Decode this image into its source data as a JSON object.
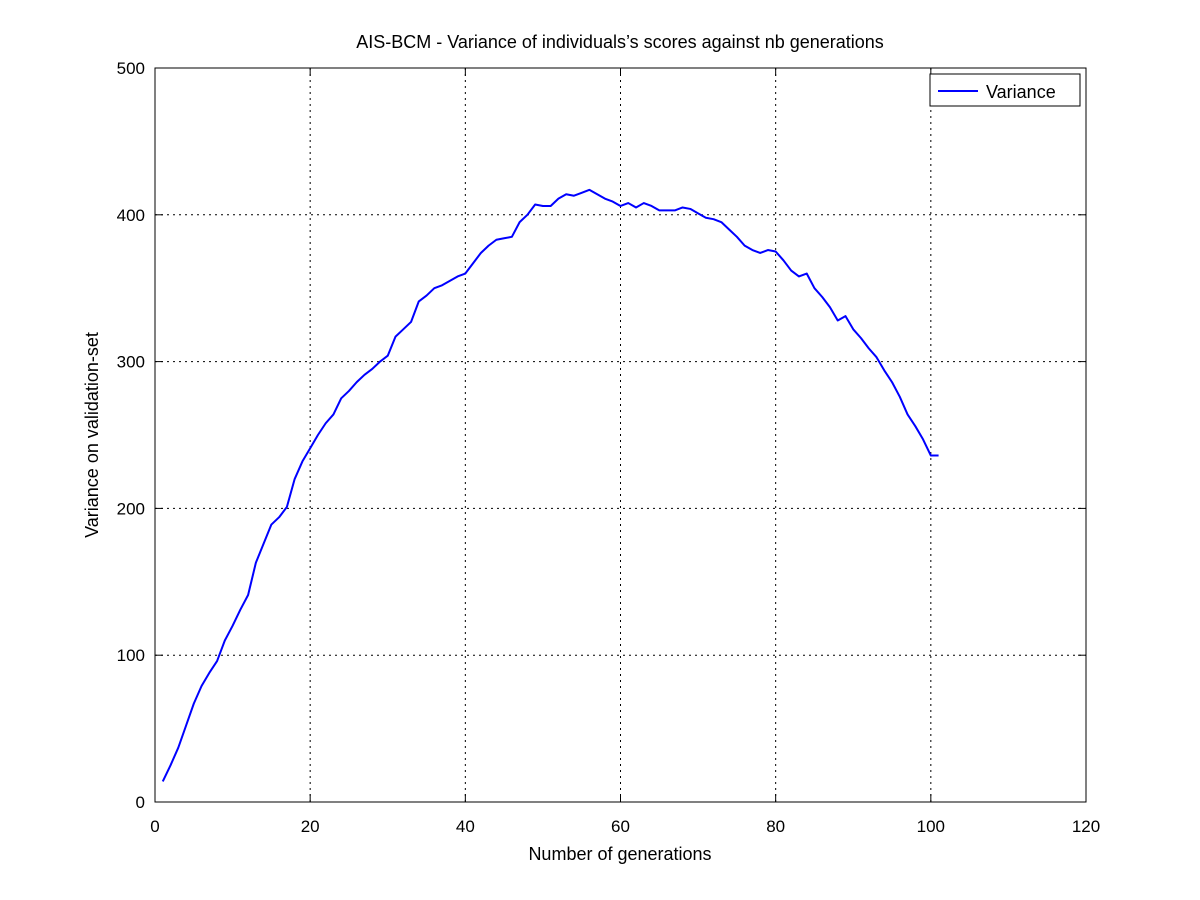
{
  "chart_data": {
    "type": "line",
    "title": "AIS-BCM - Variance of individuals’s scores against nb generations",
    "xlabel": "Number of generations",
    "ylabel": "Variance on validation-set",
    "xlim": [
      0,
      120
    ],
    "ylim": [
      0,
      500
    ],
    "xticks": [
      "0",
      "20",
      "40",
      "60",
      "80",
      "100",
      "120"
    ],
    "yticks": [
      "0",
      "100",
      "200",
      "300",
      "400",
      "500"
    ],
    "grid": true,
    "legend_position": "top-right",
    "colors": {
      "series": "#0000ff",
      "axes": "#000000",
      "grid": "#000000"
    },
    "series": [
      {
        "name": "Variance",
        "x": [
          1,
          2,
          3,
          4,
          5,
          6,
          7,
          8,
          9,
          10,
          11,
          12,
          13,
          14,
          15,
          16,
          17,
          18,
          19,
          20,
          21,
          22,
          23,
          24,
          25,
          26,
          27,
          28,
          29,
          30,
          31,
          32,
          33,
          34,
          35,
          36,
          37,
          38,
          39,
          40,
          41,
          42,
          43,
          44,
          45,
          46,
          47,
          48,
          49,
          50,
          51,
          52,
          53,
          54,
          55,
          56,
          57,
          58,
          59,
          60,
          61,
          62,
          63,
          64,
          65,
          66,
          67,
          68,
          69,
          70,
          71,
          72,
          73,
          74,
          75,
          76,
          77,
          78,
          79,
          80,
          81,
          82,
          83,
          84,
          85,
          86,
          87,
          88,
          89,
          90,
          91,
          92,
          93,
          94,
          95,
          96,
          97,
          98,
          99,
          100,
          101
        ],
        "y": [
          14,
          25,
          37,
          52,
          67,
          79,
          88,
          96,
          110,
          120,
          131,
          141,
          163,
          176,
          189,
          194,
          201,
          220,
          232,
          241,
          250,
          258,
          264,
          275,
          280,
          286,
          291,
          295,
          300,
          304,
          317,
          322,
          327,
          341,
          345,
          350,
          352,
          355,
          358,
          360,
          367,
          374,
          379,
          383,
          384,
          385,
          395,
          400,
          407,
          406,
          406,
          411,
          414,
          413,
          415,
          417,
          414,
          411,
          409,
          406,
          408,
          405,
          408,
          406,
          403,
          403,
          403,
          405,
          404,
          401,
          398,
          397,
          395,
          390,
          385,
          379,
          376,
          374,
          376,
          375,
          369,
          362,
          358,
          360,
          350,
          344,
          337,
          328,
          331,
          322,
          316,
          309,
          303,
          294,
          286,
          276,
          264,
          256,
          247,
          236,
          236
        ]
      }
    ]
  }
}
